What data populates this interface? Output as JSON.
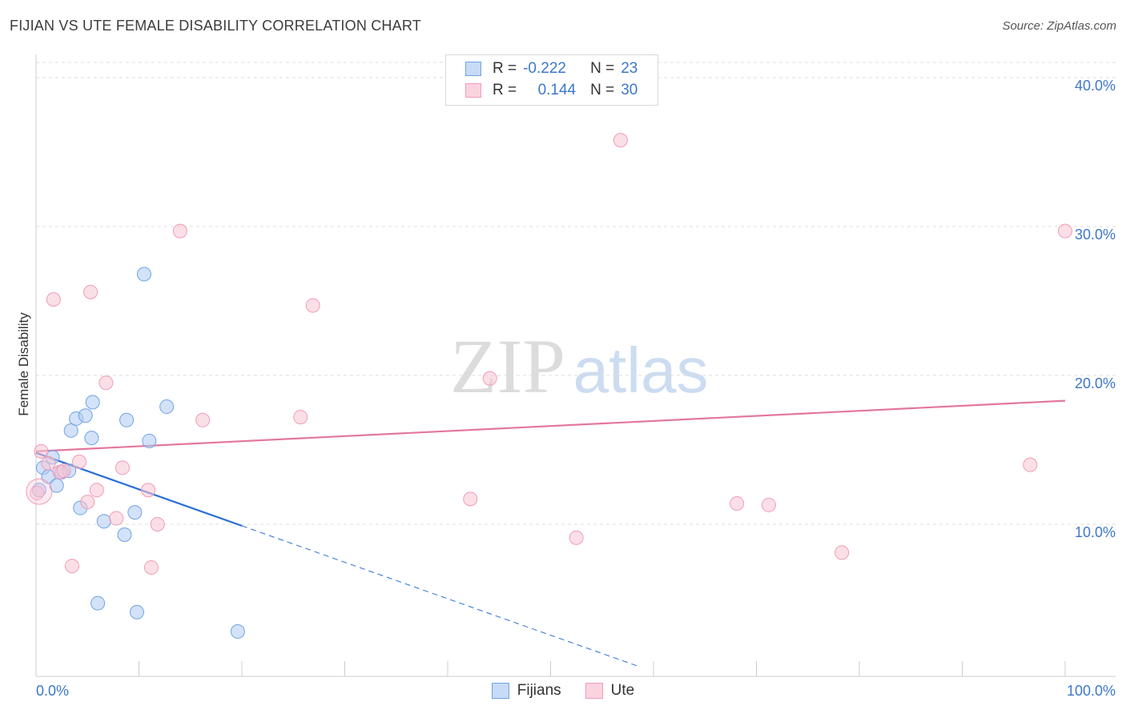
{
  "chart_data": {
    "type": "scatter",
    "title": "FIJIAN VS UTE FEMALE DISABILITY CORRELATION CHART",
    "source": "Source: ZipAtlas.com",
    "ylabel": "Female Disability",
    "xlabel": "",
    "xlim": [
      0,
      100
    ],
    "ylim": [
      0,
      40
    ],
    "x_tick_labels": [
      "0.0%",
      "100.0%"
    ],
    "y_ticks": [
      10,
      20,
      30,
      40
    ],
    "y_tick_labels": [
      "10.0%",
      "20.0%",
      "30.0%",
      "40.0%"
    ],
    "watermark": {
      "zip": "ZIP",
      "atlas": "atlas"
    },
    "legend": [
      {
        "series": "Fijians",
        "r_label": "R =",
        "r_value": "-0.222",
        "n_label": "N =",
        "n_value": "23"
      },
      {
        "series": "Ute",
        "r_label": "R =",
        "r_value": "0.144",
        "n_label": "N =",
        "n_value": "30"
      }
    ],
    "series": [
      {
        "name": "Fijians",
        "color": "#6fa3e6",
        "fill": "#aecbf2",
        "line_color": "#2a6fd6",
        "trend": {
          "x0": 0,
          "y0": 14.8,
          "x1": 20,
          "y1": 9.9,
          "dash_to_x": 58.5
        },
        "points": [
          [
            0.3,
            12.3
          ],
          [
            0.7,
            13.8
          ],
          [
            1.2,
            13.2
          ],
          [
            1.6,
            14.5
          ],
          [
            2.0,
            12.6
          ],
          [
            2.5,
            13.5
          ],
          [
            3.2,
            13.6
          ],
          [
            3.4,
            16.3
          ],
          [
            3.9,
            17.1
          ],
          [
            4.3,
            11.1
          ],
          [
            4.8,
            17.3
          ],
          [
            5.4,
            15.8
          ],
          [
            5.5,
            18.2
          ],
          [
            6.0,
            4.7
          ],
          [
            6.6,
            10.2
          ],
          [
            8.6,
            9.3
          ],
          [
            8.8,
            17.0
          ],
          [
            9.6,
            10.8
          ],
          [
            9.8,
            4.1
          ],
          [
            10.5,
            26.8
          ],
          [
            11.0,
            15.6
          ],
          [
            12.7,
            17.9
          ],
          [
            19.6,
            2.8
          ]
        ]
      },
      {
        "name": "Ute",
        "color": "#f29bb6",
        "fill": "#f8c4d4",
        "line_color": "#e3779b",
        "trend": {
          "x0": 0,
          "y0": 14.9,
          "x1": 100,
          "y1": 18.3
        },
        "points": [
          [
            0.1,
            12.1
          ],
          [
            0.5,
            14.9
          ],
          [
            1.2,
            14.1
          ],
          [
            1.7,
            25.1
          ],
          [
            2.3,
            13.5
          ],
          [
            2.7,
            13.6
          ],
          [
            3.5,
            7.2
          ],
          [
            4.2,
            14.2
          ],
          [
            5.0,
            11.5
          ],
          [
            5.3,
            25.6
          ],
          [
            5.9,
            12.3
          ],
          [
            6.8,
            19.5
          ],
          [
            7.8,
            10.4
          ],
          [
            8.4,
            13.8
          ],
          [
            10.9,
            12.3
          ],
          [
            11.2,
            7.1
          ],
          [
            11.8,
            10.0
          ],
          [
            14.0,
            29.7
          ],
          [
            16.2,
            17.0
          ],
          [
            25.7,
            17.2
          ],
          [
            26.9,
            24.7
          ],
          [
            42.2,
            11.7
          ],
          [
            44.1,
            19.8
          ],
          [
            52.5,
            9.1
          ],
          [
            56.8,
            35.8
          ],
          [
            68.1,
            11.4
          ],
          [
            71.2,
            11.3
          ],
          [
            78.3,
            8.1
          ],
          [
            96.6,
            14.0
          ],
          [
            100.0,
            29.7
          ]
        ]
      }
    ]
  }
}
